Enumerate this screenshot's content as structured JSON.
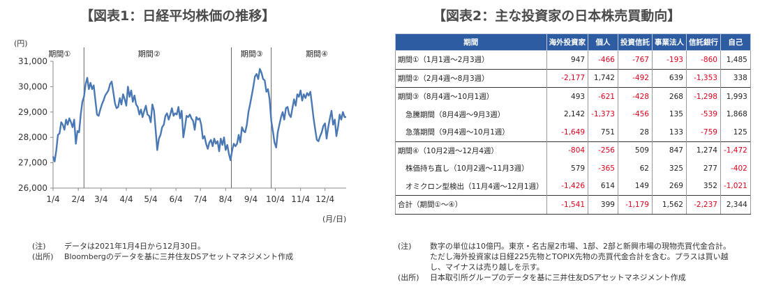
{
  "left": {
    "title": "【図表1：日経平均株価の推移】",
    "yunit": "(円)",
    "xunit": "(月/日)",
    "notes": [
      {
        "label": "(注)",
        "text": "データは2021年1月4日から12月30日。"
      },
      {
        "label": "(出所)",
        "text": "Bloombergのデータを基に三井住友DSアセットマネジメント作成"
      }
    ]
  },
  "right": {
    "title": "【図表2：主な投資家の日本株売買動向】",
    "notes": [
      {
        "label": "(注)",
        "text": "数字の単位は10億円。東京・名古屋2市場、1部、2部と新興市場の現物売買代金合計。ただし海外投資家は日経225先物とTOPIX先物の売買代金合計を含む。プラスは買い越し、マイナスは売り越しを示す。"
      },
      {
        "label": "(出所)",
        "text": "日本取引所グループのデータを基に三井住友DSアセットマネジメント作成"
      }
    ]
  },
  "table": {
    "headers": [
      "期間",
      "海外投資家",
      "個人",
      "投資信託",
      "事業法人",
      "信託銀行",
      "自己"
    ],
    "rows": [
      {
        "label": "期間①（1月1週～2月3週）",
        "sub": false,
        "group_start": true,
        "cells": [
          "947",
          "-466",
          "-767",
          "-193",
          "-860",
          "1,485"
        ]
      },
      {
        "label": "期間②（2月4週～8月3週）",
        "sub": false,
        "group_start": true,
        "cells": [
          "-2,177",
          "1,742",
          "-492",
          "639",
          "-1,353",
          "338"
        ]
      },
      {
        "label": "期間③（8月4週～10月1週）",
        "sub": false,
        "group_start": true,
        "cells": [
          "493",
          "-621",
          "-428",
          "268",
          "-1,298",
          "1,993"
        ]
      },
      {
        "label": "急騰期間（8月4週～9月3週）",
        "sub": true,
        "group_start": false,
        "cells": [
          "2,142",
          "-1,373",
          "-456",
          "135",
          "-539",
          "1,868"
        ]
      },
      {
        "label": "急落期間（9月4週～10月1週）",
        "sub": true,
        "group_start": false,
        "cells": [
          "-1,649",
          "751",
          "28",
          "133",
          "-759",
          "125"
        ]
      },
      {
        "label": "期間④（10月2週～12月4週）",
        "sub": false,
        "group_start": true,
        "cells": [
          "-804",
          "-256",
          "509",
          "847",
          "1,274",
          "-1,472"
        ]
      },
      {
        "label": "株価持ち直し（10月2週～11月3週）",
        "sub": true,
        "group_start": false,
        "cells": [
          "579",
          "-365",
          "62",
          "325",
          "277",
          "-402"
        ]
      },
      {
        "label": "オミクロン型検出（11月4週～12月1週）",
        "sub": true,
        "group_start": false,
        "cells": [
          "-1,426",
          "614",
          "149",
          "269",
          "352",
          "-1,021"
        ]
      },
      {
        "label": "合計（期間①～④）",
        "sub": false,
        "group_start": true,
        "cells": [
          "-1,541",
          "399",
          "-1,179",
          "1,562",
          "-2,237",
          "2,344"
        ]
      }
    ]
  },
  "chart_data": {
    "type": "line",
    "title": "【図表1：日経平均株価の推移】",
    "ylabel": "(円)",
    "xlabel": "(月/日)",
    "ylim": [
      26000,
      31000
    ],
    "yticks": [
      26000,
      27000,
      28000,
      29000,
      30000,
      31000
    ],
    "ytick_labels": [
      "26,000",
      "27,000",
      "28,000",
      "29,000",
      "30,000",
      "31,000"
    ],
    "xlim": [
      0,
      360
    ],
    "xticks": [
      {
        "label": "1/4",
        "day": 0
      },
      {
        "label": "2/4",
        "day": 31
      },
      {
        "label": "3/4",
        "day": 59
      },
      {
        "label": "4/4",
        "day": 90
      },
      {
        "label": "5/4",
        "day": 120
      },
      {
        "label": "6/4",
        "day": 151
      },
      {
        "label": "7/4",
        "day": 181
      },
      {
        "label": "8/4",
        "day": 212
      },
      {
        "label": "9/4",
        "day": 243
      },
      {
        "label": "10/4",
        "day": 273
      },
      {
        "label": "11/4",
        "day": 304
      },
      {
        "label": "12/4",
        "day": 334
      }
    ],
    "period_dividers": [
      38,
      219,
      268
    ],
    "period_labels": [
      {
        "label": "期間①",
        "day": 8
      },
      {
        "label": "期間②",
        "day": 118
      },
      {
        "label": "期間③",
        "day": 244
      },
      {
        "label": "期間④",
        "day": 324
      }
    ],
    "grid": false,
    "series": [
      {
        "color": "#4a78b5",
        "points": [
          [
            0,
            27250
          ],
          [
            2,
            27050
          ],
          [
            4,
            27500
          ],
          [
            6,
            28100
          ],
          [
            8,
            28150
          ],
          [
            10,
            28600
          ],
          [
            12,
            28500
          ],
          [
            14,
            28300
          ],
          [
            16,
            28700
          ],
          [
            18,
            28500
          ],
          [
            20,
            28750
          ],
          [
            22,
            28600
          ],
          [
            24,
            28400
          ],
          [
            26,
            28700
          ],
          [
            28,
            27750
          ],
          [
            30,
            28250
          ],
          [
            32,
            28200
          ],
          [
            34,
            28900
          ],
          [
            36,
            29400
          ],
          [
            38,
            29600
          ],
          [
            40,
            30100
          ],
          [
            42,
            30350
          ],
          [
            44,
            29900
          ],
          [
            46,
            30150
          ],
          [
            48,
            29900
          ],
          [
            50,
            30050
          ],
          [
            52,
            29450
          ],
          [
            54,
            28900
          ],
          [
            56,
            28850
          ],
          [
            58,
            29100
          ],
          [
            60,
            29300
          ],
          [
            62,
            29450
          ],
          [
            64,
            29650
          ],
          [
            66,
            29750
          ],
          [
            68,
            29850
          ],
          [
            70,
            30100
          ],
          [
            72,
            30200
          ],
          [
            74,
            29800
          ],
          [
            76,
            29350
          ],
          [
            78,
            29150
          ],
          [
            80,
            29200
          ],
          [
            82,
            29550
          ],
          [
            84,
            29300
          ],
          [
            86,
            29700
          ],
          [
            88,
            29500
          ],
          [
            90,
            29250
          ],
          [
            92,
            30000
          ],
          [
            94,
            29600
          ],
          [
            96,
            29850
          ],
          [
            98,
            29400
          ],
          [
            100,
            29650
          ],
          [
            102,
            29300
          ],
          [
            104,
            29200
          ],
          [
            106,
            28900
          ],
          [
            108,
            29100
          ],
          [
            110,
            28800
          ],
          [
            112,
            29050
          ],
          [
            114,
            29250
          ],
          [
            116,
            28900
          ],
          [
            118,
            28850
          ],
          [
            120,
            28600
          ],
          [
            122,
            29300
          ],
          [
            124,
            29050
          ],
          [
            126,
            28300
          ],
          [
            128,
            27500
          ],
          [
            130,
            27950
          ],
          [
            132,
            28100
          ],
          [
            134,
            28400
          ],
          [
            136,
            28500
          ],
          [
            138,
            28850
          ],
          [
            140,
            28950
          ],
          [
            142,
            28700
          ],
          [
            144,
            28900
          ],
          [
            146,
            29150
          ],
          [
            148,
            28850
          ],
          [
            150,
            28950
          ],
          [
            152,
            28900
          ],
          [
            154,
            29200
          ],
          [
            156,
            28750
          ],
          [
            158,
            29050
          ],
          [
            160,
            28000
          ],
          [
            162,
            28400
          ],
          [
            164,
            28850
          ],
          [
            166,
            28800
          ],
          [
            168,
            28900
          ],
          [
            170,
            28750
          ],
          [
            172,
            28650
          ],
          [
            174,
            28300
          ],
          [
            176,
            28800
          ],
          [
            178,
            28700
          ],
          [
            180,
            28750
          ],
          [
            182,
            28500
          ],
          [
            184,
            27950
          ],
          [
            186,
            28050
          ],
          [
            188,
            27750
          ],
          [
            190,
            27550
          ],
          [
            192,
            27800
          ],
          [
            194,
            27900
          ],
          [
            196,
            27650
          ],
          [
            198,
            27950
          ],
          [
            200,
            27750
          ],
          [
            202,
            27850
          ],
          [
            204,
            27450
          ],
          [
            206,
            27950
          ],
          [
            208,
            27700
          ],
          [
            210,
            28000
          ],
          [
            212,
            27500
          ],
          [
            214,
            27700
          ],
          [
            216,
            27350
          ],
          [
            218,
            27100
          ],
          [
            220,
            27500
          ],
          [
            222,
            27750
          ],
          [
            224,
            27650
          ],
          [
            226,
            27750
          ],
          [
            228,
            28100
          ],
          [
            230,
            27800
          ],
          [
            232,
            28400
          ],
          [
            234,
            28250
          ],
          [
            236,
            28200
          ],
          [
            238,
            28500
          ],
          [
            240,
            29000
          ],
          [
            242,
            29300
          ],
          [
            244,
            29650
          ],
          [
            246,
            30000
          ],
          [
            248,
            30400
          ],
          [
            250,
            30500
          ],
          [
            252,
            30300
          ],
          [
            254,
            30700
          ],
          [
            256,
            30550
          ],
          [
            258,
            30300
          ],
          [
            260,
            30250
          ],
          [
            262,
            29800
          ],
          [
            264,
            29900
          ],
          [
            266,
            29500
          ],
          [
            268,
            28650
          ],
          [
            270,
            28250
          ],
          [
            272,
            27800
          ],
          [
            274,
            27600
          ],
          [
            276,
            28200
          ],
          [
            278,
            28500
          ],
          [
            280,
            28800
          ],
          [
            282,
            29000
          ],
          [
            284,
            28700
          ],
          [
            286,
            29150
          ],
          [
            288,
            29200
          ],
          [
            290,
            28900
          ],
          [
            292,
            28800
          ],
          [
            294,
            29150
          ],
          [
            296,
            29500
          ],
          [
            298,
            29250
          ],
          [
            300,
            29700
          ],
          [
            302,
            29600
          ],
          [
            304,
            29850
          ],
          [
            306,
            29450
          ],
          [
            308,
            29700
          ],
          [
            310,
            29550
          ],
          [
            312,
            29750
          ],
          [
            314,
            29650
          ],
          [
            316,
            29800
          ],
          [
            318,
            29300
          ],
          [
            320,
            28750
          ],
          [
            322,
            28300
          ],
          [
            324,
            27900
          ],
          [
            326,
            27850
          ],
          [
            328,
            28050
          ],
          [
            330,
            28200
          ],
          [
            332,
            28450
          ],
          [
            334,
            28550
          ],
          [
            336,
            27950
          ],
          [
            338,
            28400
          ],
          [
            340,
            28750
          ],
          [
            342,
            29050
          ],
          [
            344,
            28500
          ],
          [
            346,
            28700
          ],
          [
            348,
            28050
          ],
          [
            350,
            28400
          ],
          [
            352,
            28900
          ],
          [
            354,
            28700
          ],
          [
            356,
            29000
          ],
          [
            358,
            28800
          ],
          [
            360,
            28800
          ]
        ]
      }
    ]
  }
}
